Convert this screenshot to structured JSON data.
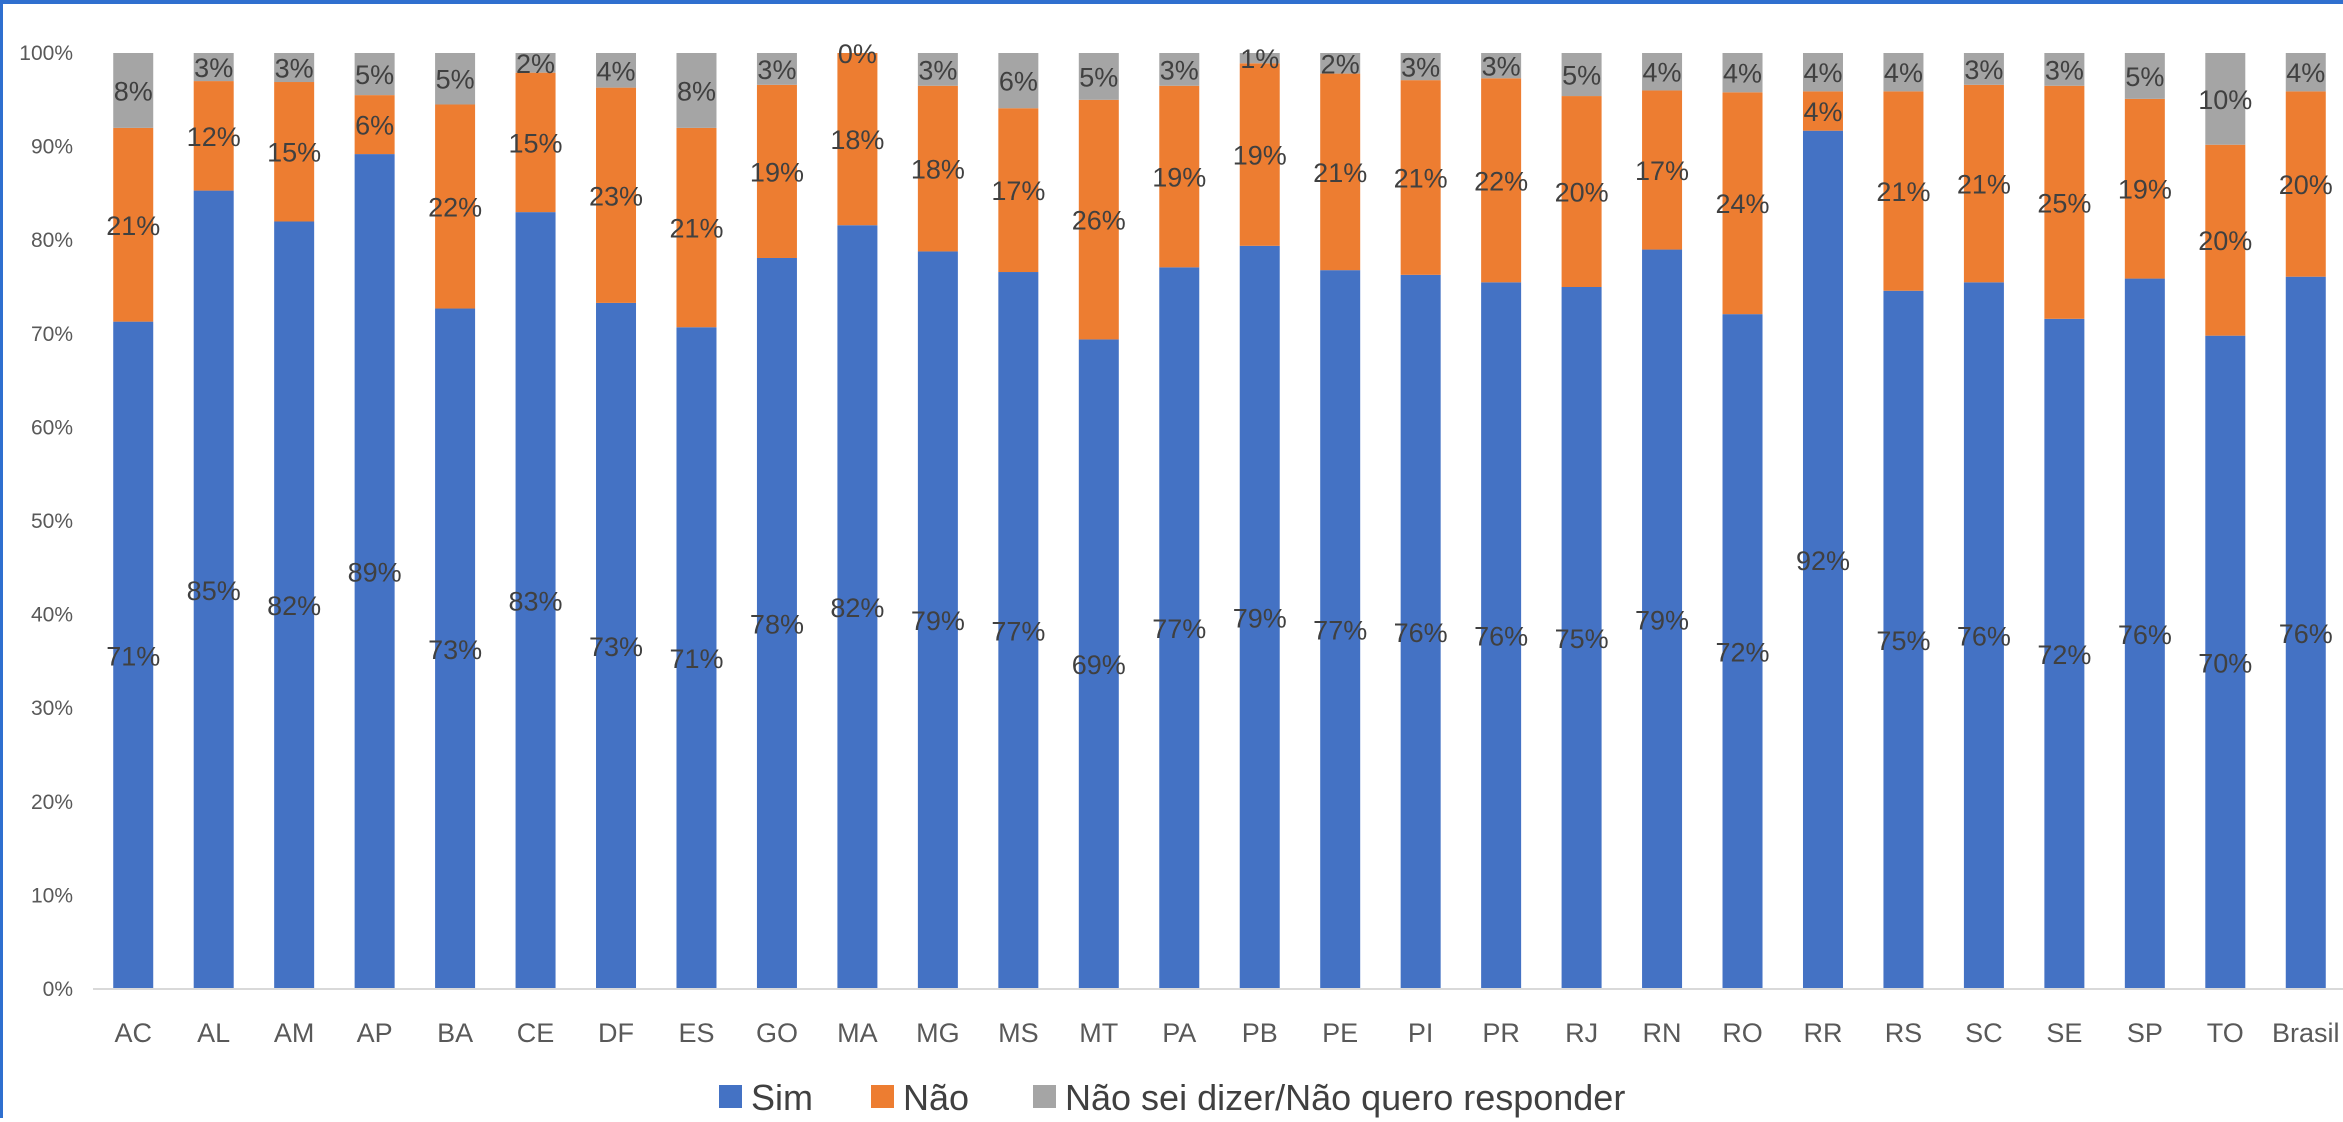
{
  "chart_data": {
    "type": "bar",
    "stacked": true,
    "categories": [
      "AC",
      "AL",
      "AM",
      "AP",
      "BA",
      "CE",
      "DF",
      "ES",
      "GO",
      "MA",
      "MG",
      "MS",
      "MT",
      "PA",
      "PB",
      "PE",
      "PI",
      "PR",
      "RJ",
      "RN",
      "RO",
      "RR",
      "RS",
      "SC",
      "SE",
      "SP",
      "TO",
      "Brasil"
    ],
    "series": [
      {
        "name": "Sim",
        "color": "#4472c4",
        "values": [
          71.3,
          85.3,
          82.0,
          89.2,
          72.7,
          83.0,
          73.3,
          70.7,
          78.1,
          81.6,
          78.8,
          76.6,
          69.4,
          77.1,
          79.4,
          76.8,
          76.3,
          75.5,
          75.0,
          79.0,
          72.1,
          91.7,
          74.6,
          75.5,
          71.6,
          75.9,
          69.8,
          76.1
        ],
        "labels": [
          "71%",
          "85%",
          "82%",
          "89%",
          "73%",
          "83%",
          "73%",
          "71%",
          "78%",
          "82%",
          "79%",
          "77%",
          "69%",
          "77%",
          "79%",
          "77%",
          "76%",
          "76%",
          "75%",
          "79%",
          "72%",
          "92%",
          "75%",
          "76%",
          "72%",
          "76%",
          "70%",
          "76%"
        ]
      },
      {
        "name": "Não",
        "color": "#ed7d31",
        "values": [
          20.7,
          11.7,
          14.9,
          6.3,
          21.8,
          14.9,
          23.0,
          21.3,
          18.5,
          18.4,
          17.7,
          17.5,
          25.6,
          19.4,
          19.5,
          21.0,
          20.8,
          21.8,
          20.4,
          17.0,
          23.7,
          4.2,
          21.3,
          21.1,
          24.9,
          19.2,
          20.4,
          19.8
        ],
        "labels": [
          "21%",
          "12%",
          "15%",
          "6%",
          "22%",
          "15%",
          "23%",
          "21%",
          "19%",
          "18%",
          "18%",
          "17%",
          "26%",
          "19%",
          "19%",
          "21%",
          "21%",
          "22%",
          "20%",
          "17%",
          "24%",
          "4%",
          "21%",
          "21%",
          "25%",
          "19%",
          "20%",
          "20%"
        ]
      },
      {
        "name": "Não sei dizer/Não quero responder",
        "color": "#a5a5a5",
        "values": [
          8.0,
          3.0,
          3.1,
          4.5,
          5.5,
          2.1,
          3.7,
          8.0,
          3.4,
          0.0,
          3.5,
          5.9,
          5.0,
          3.5,
          1.1,
          2.2,
          2.9,
          2.7,
          4.6,
          4.0,
          4.2,
          4.1,
          4.1,
          3.4,
          3.5,
          4.9,
          9.8,
          4.1
        ],
        "labels": [
          "8%",
          "3%",
          "3%",
          "5%",
          "5%",
          "2%",
          "4%",
          "8%",
          "3%",
          "0%",
          "3%",
          "6%",
          "5%",
          "3%",
          "1%",
          "2%",
          "3%",
          "3%",
          "5%",
          "4%",
          "4%",
          "4%",
          "4%",
          "3%",
          "3%",
          "5%",
          "10%",
          "4%"
        ]
      }
    ],
    "ylim": [
      0,
      100
    ],
    "yticks": [
      "0%",
      "10%",
      "20%",
      "30%",
      "40%",
      "50%",
      "60%",
      "70%",
      "80%",
      "90%",
      "100%"
    ],
    "title": "",
    "xlabel": "",
    "ylabel": "",
    "grid": false,
    "legend_position": "bottom"
  }
}
